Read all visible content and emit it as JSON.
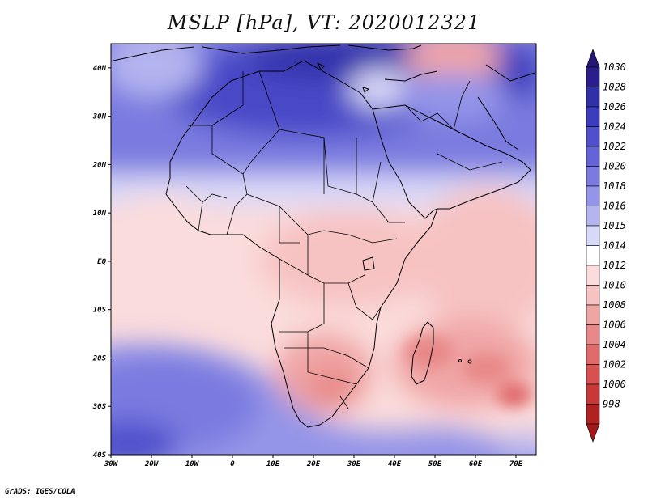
{
  "header": {
    "title": "MSLP [hPa], VT: 2020012321"
  },
  "footer": {
    "credit": "GrADS: IGES/COLA"
  },
  "map": {
    "projection": "latlon",
    "lon_range": [
      -30,
      75
    ],
    "lat_range": [
      -40,
      45
    ],
    "lat_ticks": [
      {
        "value": 40,
        "label": "40N"
      },
      {
        "value": 30,
        "label": "30N"
      },
      {
        "value": 20,
        "label": "20N"
      },
      {
        "value": 10,
        "label": "10N"
      },
      {
        "value": 0,
        "label": "EQ"
      },
      {
        "value": -10,
        "label": "10S"
      },
      {
        "value": -20,
        "label": "20S"
      },
      {
        "value": -30,
        "label": "30S"
      },
      {
        "value": -40,
        "label": "40S"
      }
    ],
    "lon_ticks": [
      {
        "value": -30,
        "label": "30W"
      },
      {
        "value": -20,
        "label": "20W"
      },
      {
        "value": -10,
        "label": "10W"
      },
      {
        "value": 0,
        "label": "0"
      },
      {
        "value": 10,
        "label": "10E"
      },
      {
        "value": 20,
        "label": "20E"
      },
      {
        "value": 30,
        "label": "30E"
      },
      {
        "value": 40,
        "label": "40E"
      },
      {
        "value": 50,
        "label": "50E"
      },
      {
        "value": 60,
        "label": "60E"
      },
      {
        "value": 70,
        "label": "70E"
      }
    ]
  },
  "colorbar": {
    "levels": [
      {
        "label": "1030",
        "color": "#2b1e8c"
      },
      {
        "label": "1028",
        "color": "#3030a8"
      },
      {
        "label": "1026",
        "color": "#3c3cbe"
      },
      {
        "label": "1024",
        "color": "#5050cc"
      },
      {
        "label": "1022",
        "color": "#6464d8"
      },
      {
        "label": "1020",
        "color": "#7a7ae0"
      },
      {
        "label": "1018",
        "color": "#9494e8"
      },
      {
        "label": "1016",
        "color": "#b4b4f0"
      },
      {
        "label": "1015",
        "color": "#d8d8f8"
      },
      {
        "label": "1014",
        "color": "#ffffff"
      },
      {
        "label": "1012",
        "color": "#fbdcdc"
      },
      {
        "label": "1010",
        "color": "#f7c2c2"
      },
      {
        "label": "1008",
        "color": "#f0a5a5"
      },
      {
        "label": "1006",
        "color": "#e88888"
      },
      {
        "label": "1004",
        "color": "#e06a6a"
      },
      {
        "label": "1002",
        "color": "#d85050"
      },
      {
        "label": "1000",
        "color": "#c93838"
      },
      {
        "label": "998",
        "color": "#b02222"
      }
    ],
    "top_arrow_color": "#231877",
    "bottom_arrow_color": "#a01818"
  }
}
